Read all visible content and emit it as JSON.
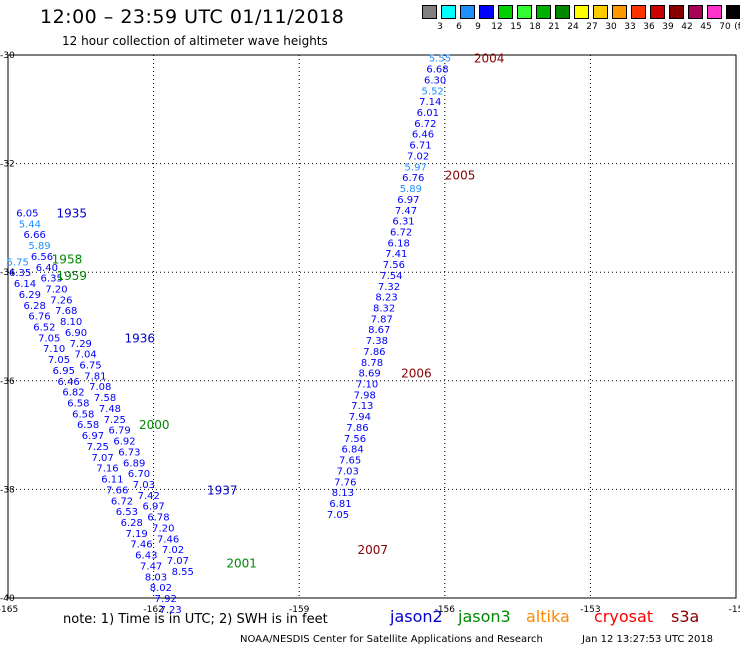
{
  "header": {
    "title": "12:00 – 23:59 UTC 01/11/2018",
    "subtitle": "12 hour collection of altimeter wave heights"
  },
  "colorbar": {
    "unit": "(ft)",
    "items": [
      {
        "label": "",
        "color": "#808080"
      },
      {
        "label": "3",
        "color": "#00ffff"
      },
      {
        "label": "6",
        "color": "#1e90ff"
      },
      {
        "label": "9",
        "color": "#0000ff"
      },
      {
        "label": "12",
        "color": "#00d000"
      },
      {
        "label": "15",
        "color": "#33ff33"
      },
      {
        "label": "18",
        "color": "#00b000"
      },
      {
        "label": "21",
        "color": "#008800"
      },
      {
        "label": "24",
        "color": "#ffff00"
      },
      {
        "label": "27",
        "color": "#ffcc00"
      },
      {
        "label": "30",
        "color": "#ff9900"
      },
      {
        "label": "33",
        "color": "#ff3300"
      },
      {
        "label": "36",
        "color": "#cc0000"
      },
      {
        "label": "39",
        "color": "#880000"
      },
      {
        "label": "42",
        "color": "#aa0055"
      },
      {
        "label": "45",
        "color": "#ff33cc"
      },
      {
        "label": "70",
        "color": "#000000"
      }
    ]
  },
  "axes": {
    "x_ticks": [
      "-165",
      "-162",
      "-159",
      "-156",
      "-153",
      "-15"
    ],
    "y_ticks": [
      "-30",
      "-32",
      "-34",
      "-36",
      "-38",
      "-40"
    ]
  },
  "note": "note: 1) Time is in UTC; 2) SWH is in feet",
  "satellites": [
    {
      "name": "jason2",
      "color": "#0000cc"
    },
    {
      "name": "jason3",
      "color": "#008800"
    },
    {
      "name": "altika",
      "color": "#ff8800"
    },
    {
      "name": "cryosat",
      "color": "#ff0000"
    },
    {
      "name": "s3a",
      "color": "#880000"
    }
  ],
  "footer": {
    "left": "NOAA/NESDIS Center for Satellite Applications and Research",
    "right": "Jan 12 13:27:53 UTC 2018"
  },
  "chart_data": {
    "type": "scatter",
    "xlim": [
      -165,
      -150
    ],
    "ylim": [
      -40,
      -30
    ],
    "grid": true,
    "time_labels": [
      {
        "text": "2004",
        "lon": -155.4,
        "lat": -30.05,
        "color": "#880000"
      },
      {
        "text": "2005",
        "lon": -156.0,
        "lat": -32.2,
        "color": "#880000"
      },
      {
        "text": "2006",
        "lon": -156.9,
        "lat": -35.85,
        "color": "#880000"
      },
      {
        "text": "2007",
        "lon": -157.8,
        "lat": -39.1,
        "color": "#880000"
      },
      {
        "text": "1935",
        "lon": -164.0,
        "lat": -32.9,
        "color": "#0000cc"
      },
      {
        "text": "1936",
        "lon": -162.6,
        "lat": -35.2,
        "color": "#0000cc"
      },
      {
        "text": "1937",
        "lon": -160.9,
        "lat": -38.0,
        "color": "#0000cc"
      },
      {
        "text": "1958",
        "lon": -164.1,
        "lat": -33.75,
        "color": "#008800"
      },
      {
        "text": "1959",
        "lon": -164.0,
        "lat": -34.05,
        "color": "#008800"
      },
      {
        "text": "2000",
        "lon": -162.3,
        "lat": -36.8,
        "color": "#008800"
      },
      {
        "text": "2001",
        "lon": -160.5,
        "lat": -39.35,
        "color": "#008800"
      }
    ],
    "series": [
      {
        "name": "s3a",
        "points": [
          {
            "lon": -156.1,
            "lat": -30.05,
            "v": "5.55"
          },
          {
            "lon": -156.15,
            "lat": -30.25,
            "v": "6.68"
          },
          {
            "lon": -156.2,
            "lat": -30.45,
            "v": "6.30"
          },
          {
            "lon": -156.25,
            "lat": -30.65,
            "v": "5.52"
          },
          {
            "lon": -156.3,
            "lat": -30.85,
            "v": "7.14"
          },
          {
            "lon": -156.35,
            "lat": -31.05,
            "v": "6.01"
          },
          {
            "lon": -156.4,
            "lat": -31.25,
            "v": "6.72"
          },
          {
            "lon": -156.45,
            "lat": -31.45,
            "v": "6.46"
          },
          {
            "lon": -156.5,
            "lat": -31.65,
            "v": "6.71"
          },
          {
            "lon": -156.55,
            "lat": -31.85,
            "v": "7.02"
          },
          {
            "lon": -156.6,
            "lat": -32.05,
            "v": "5.97"
          },
          {
            "lon": -156.65,
            "lat": -32.25,
            "v": "6.76"
          },
          {
            "lon": -156.7,
            "lat": -32.45,
            "v": "5.89"
          },
          {
            "lon": -156.75,
            "lat": -32.65,
            "v": "6.97"
          },
          {
            "lon": -156.8,
            "lat": -32.85,
            "v": "7.47"
          },
          {
            "lon": -156.85,
            "lat": -33.05,
            "v": "6.31"
          },
          {
            "lon": -156.9,
            "lat": -33.25,
            "v": "6.72"
          },
          {
            "lon": -156.95,
            "lat": -33.45,
            "v": "6.18"
          },
          {
            "lon": -157.0,
            "lat": -33.65,
            "v": "7.41"
          },
          {
            "lon": -157.05,
            "lat": -33.85,
            "v": "7.56"
          },
          {
            "lon": -157.1,
            "lat": -34.05,
            "v": "7.54"
          },
          {
            "lon": -157.15,
            "lat": -34.25,
            "v": "7.32"
          },
          {
            "lon": -157.2,
            "lat": -34.45,
            "v": "8.23"
          },
          {
            "lon": -157.25,
            "lat": -34.65,
            "v": "8.32"
          },
          {
            "lon": -157.3,
            "lat": -34.85,
            "v": "7.87"
          },
          {
            "lon": -157.35,
            "lat": -35.05,
            "v": "8.67"
          },
          {
            "lon": -157.4,
            "lat": -35.25,
            "v": "7.38"
          },
          {
            "lon": -157.45,
            "lat": -35.45,
            "v": "7.86"
          },
          {
            "lon": -157.5,
            "lat": -35.65,
            "v": "8.78"
          },
          {
            "lon": -157.55,
            "lat": -35.85,
            "v": "8.69"
          },
          {
            "lon": -157.6,
            "lat": -36.05,
            "v": "7.10"
          },
          {
            "lon": -157.65,
            "lat": -36.25,
            "v": "7.98"
          },
          {
            "lon": -157.7,
            "lat": -36.45,
            "v": "7.13"
          },
          {
            "lon": -157.75,
            "lat": -36.65,
            "v": "7.94"
          },
          {
            "lon": -157.8,
            "lat": -36.85,
            "v": "7.86"
          },
          {
            "lon": -157.85,
            "lat": -37.05,
            "v": "7.56"
          },
          {
            "lon": -157.9,
            "lat": -37.25,
            "v": "6.84"
          },
          {
            "lon": -157.95,
            "lat": -37.45,
            "v": "7.65"
          },
          {
            "lon": -158.0,
            "lat": -37.65,
            "v": "7.03"
          },
          {
            "lon": -158.05,
            "lat": -37.85,
            "v": "7.76"
          },
          {
            "lon": -158.1,
            "lat": -38.05,
            "v": "8.13"
          },
          {
            "lon": -158.15,
            "lat": -38.25,
            "v": "6.81"
          },
          {
            "lon": -158.2,
            "lat": -38.45,
            "v": "7.05"
          }
        ]
      },
      {
        "name": "jason2",
        "points": [
          {
            "lon": -164.6,
            "lat": -32.9,
            "v": "6.05"
          },
          {
            "lon": -164.55,
            "lat": -33.1,
            "v": "5.44"
          },
          {
            "lon": -164.45,
            "lat": -33.3,
            "v": "6.66"
          },
          {
            "lon": -164.35,
            "lat": -33.5,
            "v": "5.89"
          },
          {
            "lon": -164.3,
            "lat": -33.7,
            "v": "6.56"
          },
          {
            "lon": -164.2,
            "lat": -33.9,
            "v": "6.40"
          },
          {
            "lon": -164.1,
            "lat": -34.1,
            "v": "6.35"
          },
          {
            "lon": -164.0,
            "lat": -34.3,
            "v": "7.20"
          },
          {
            "lon": -163.9,
            "lat": -34.5,
            "v": "7.26"
          },
          {
            "lon": -163.8,
            "lat": -34.7,
            "v": "7.68"
          },
          {
            "lon": -163.7,
            "lat": -34.9,
            "v": "8.10"
          },
          {
            "lon": -163.6,
            "lat": -35.1,
            "v": "6.90"
          },
          {
            "lon": -163.5,
            "lat": -35.3,
            "v": "7.29"
          },
          {
            "lon": -163.4,
            "lat": -35.5,
            "v": "7.04"
          },
          {
            "lon": -163.3,
            "lat": -35.7,
            "v": "6.75"
          },
          {
            "lon": -163.2,
            "lat": -35.9,
            "v": "7.81"
          },
          {
            "lon": -163.1,
            "lat": -36.1,
            "v": "7.08"
          },
          {
            "lon": -163.0,
            "lat": -36.3,
            "v": "7.58"
          },
          {
            "lon": -162.9,
            "lat": -36.5,
            "v": "7.48"
          },
          {
            "lon": -162.8,
            "lat": -36.7,
            "v": "7.25"
          },
          {
            "lon": -162.7,
            "lat": -36.9,
            "v": "6.79"
          },
          {
            "lon": -162.6,
            "lat": -37.1,
            "v": "6.92"
          },
          {
            "lon": -162.5,
            "lat": -37.3,
            "v": "6.73"
          },
          {
            "lon": -162.4,
            "lat": -37.5,
            "v": "6.89"
          },
          {
            "lon": -162.3,
            "lat": -37.7,
            "v": "6.70"
          },
          {
            "lon": -162.2,
            "lat": -37.9,
            "v": "7.03"
          },
          {
            "lon": -162.1,
            "lat": -38.1,
            "v": "7.42"
          },
          {
            "lon": -162.0,
            "lat": -38.3,
            "v": "6.97"
          },
          {
            "lon": -161.9,
            "lat": -38.5,
            "v": "6.78"
          },
          {
            "lon": -161.8,
            "lat": -38.7,
            "v": "7.20"
          },
          {
            "lon": -161.7,
            "lat": -38.9,
            "v": "7.46"
          },
          {
            "lon": -161.6,
            "lat": -39.1,
            "v": "7.02"
          },
          {
            "lon": -161.5,
            "lat": -39.3,
            "v": "7.07"
          },
          {
            "lon": -161.4,
            "lat": -39.5,
            "v": "8.55"
          }
        ]
      },
      {
        "name": "jason3",
        "points": [
          {
            "lon": -164.8,
            "lat": -33.8,
            "v": "5.75"
          },
          {
            "lon": -164.75,
            "lat": -34.0,
            "v": "6.35"
          },
          {
            "lon": -164.65,
            "lat": -34.2,
            "v": "6.14"
          },
          {
            "lon": -164.55,
            "lat": -34.4,
            "v": "6.29"
          },
          {
            "lon": -164.45,
            "lat": -34.6,
            "v": "6.28"
          },
          {
            "lon": -164.35,
            "lat": -34.8,
            "v": "6.76"
          },
          {
            "lon": -164.25,
            "lat": -35.0,
            "v": "6.52"
          },
          {
            "lon": -164.15,
            "lat": -35.2,
            "v": "7.05"
          },
          {
            "lon": -164.05,
            "lat": -35.4,
            "v": "7.10"
          },
          {
            "lon": -163.95,
            "lat": -35.6,
            "v": "7.05"
          },
          {
            "lon": -163.85,
            "lat": -35.8,
            "v": "6.95"
          },
          {
            "lon": -163.75,
            "lat": -36.0,
            "v": "6.46"
          },
          {
            "lon": -163.65,
            "lat": -36.2,
            "v": "6.82"
          },
          {
            "lon": -163.55,
            "lat": -36.4,
            "v": "6.58"
          },
          {
            "lon": -163.45,
            "lat": -36.6,
            "v": "6.58"
          },
          {
            "lon": -163.35,
            "lat": -36.8,
            "v": "6.58"
          },
          {
            "lon": -163.25,
            "lat": -37.0,
            "v": "6.97"
          },
          {
            "lon": -163.15,
            "lat": -37.2,
            "v": "7.25"
          },
          {
            "lon": -163.05,
            "lat": -37.4,
            "v": "7.07"
          },
          {
            "lon": -162.95,
            "lat": -37.6,
            "v": "7.16"
          },
          {
            "lon": -162.85,
            "lat": -37.8,
            "v": "6.11"
          },
          {
            "lon": -162.75,
            "lat": -38.0,
            "v": "7.66"
          },
          {
            "lon": -162.65,
            "lat": -38.2,
            "v": "6.72"
          },
          {
            "lon": -162.55,
            "lat": -38.4,
            "v": "6.53"
          },
          {
            "lon": -162.45,
            "lat": -38.6,
            "v": "6.28"
          },
          {
            "lon": -162.35,
            "lat": -38.8,
            "v": "7.19"
          },
          {
            "lon": -162.25,
            "lat": -39.0,
            "v": "7.46"
          },
          {
            "lon": -162.15,
            "lat": -39.2,
            "v": "6.43"
          },
          {
            "lon": -162.05,
            "lat": -39.4,
            "v": "7.47"
          },
          {
            "lon": -161.95,
            "lat": -39.6,
            "v": "8.03"
          },
          {
            "lon": -161.85,
            "lat": -39.8,
            "v": "8.02"
          },
          {
            "lon": -161.75,
            "lat": -40.0,
            "v": "7.92"
          },
          {
            "lon": -161.65,
            "lat": -40.2,
            "v": "7.23"
          }
        ]
      }
    ]
  }
}
